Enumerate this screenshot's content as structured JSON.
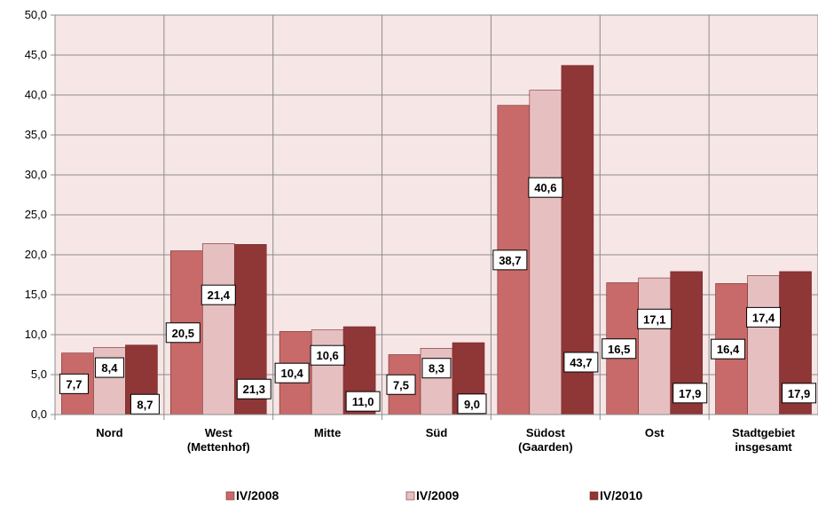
{
  "chart_data": {
    "type": "bar",
    "title": "",
    "xlabel": "",
    "ylabel": "",
    "ylim": [
      0,
      50
    ],
    "yticks": [
      "0,0",
      "5,0",
      "10,0",
      "15,0",
      "20,0",
      "25,0",
      "30,0",
      "35,0",
      "40,0",
      "45,0",
      "50,0"
    ],
    "grid": true,
    "legend_position": "bottom",
    "categories": [
      [
        "Nord"
      ],
      [
        "West",
        "(Mettenhof)"
      ],
      [
        "Mitte"
      ],
      [
        "Süd"
      ],
      [
        "Südost",
        "(Gaarden)"
      ],
      [
        "Ost"
      ],
      [
        "Stadtgebiet",
        "insgesamt"
      ]
    ],
    "series": [
      {
        "name": "IV/2008",
        "color": "#c86a69",
        "values": [
          7.7,
          20.5,
          10.4,
          7.5,
          38.7,
          16.5,
          16.4
        ],
        "labels": [
          "7,7",
          "20,5",
          "10,4",
          "7,5",
          "38,7",
          "16,5",
          "16,4"
        ]
      },
      {
        "name": "IV/2009",
        "color": "#e6c0c1",
        "values": [
          8.4,
          21.4,
          10.6,
          8.3,
          40.6,
          17.1,
          17.4
        ],
        "labels": [
          "8,4",
          "21,4",
          "10,6",
          "8,3",
          "40,6",
          "17,1",
          "17,4"
        ]
      },
      {
        "name": "IV/2010",
        "color": "#8f3637",
        "values": [
          8.7,
          21.3,
          11.0,
          9.0,
          43.7,
          17.9,
          17.9
        ],
        "labels": [
          "8,7",
          "21,3",
          "11,0",
          "9,0",
          "43,7",
          "17,9",
          "17,9"
        ]
      }
    ],
    "plot_background": "#f7e6e6",
    "grid_color": "#8c8c8c"
  }
}
